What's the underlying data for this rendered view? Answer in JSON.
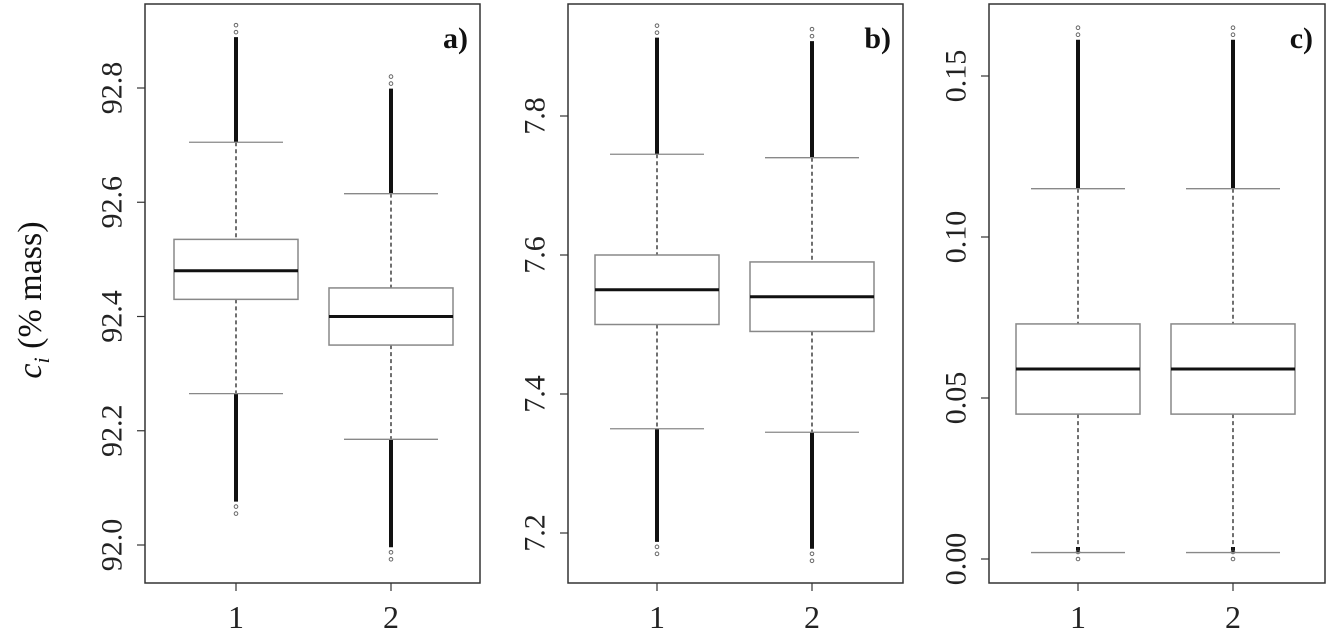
{
  "figure": {
    "ylabel_symbol": "c",
    "ylabel_subscript": "i",
    "ylabel_unit": " (% mass)",
    "background": "#ffffff",
    "line_color": "#222222",
    "box_border_color": "#888888"
  },
  "chart_data": [
    {
      "type": "box",
      "panel_label": "a)",
      "categories": [
        "1",
        "2"
      ],
      "ylabel": "c_i (% mass)",
      "xlabel": "",
      "yticks": [
        92.0,
        92.2,
        92.4,
        92.6,
        92.8
      ],
      "ytick_labels": [
        "92.0",
        "92.2",
        "92.4",
        "92.6",
        "92.8"
      ],
      "ylim": [
        91.94,
        92.94
      ],
      "grid": false,
      "series": [
        {
          "name": "1",
          "q1": 92.43,
          "median": 92.48,
          "q3": 92.535,
          "whisker_low": 92.265,
          "whisker_high": 92.705,
          "outliers_low_min": 92.055,
          "outliers_high_max": 92.91
        },
        {
          "name": "2",
          "q1": 92.35,
          "median": 92.4,
          "q3": 92.45,
          "whisker_low": 92.185,
          "whisker_high": 92.615,
          "outliers_low_min": 91.975,
          "outliers_high_max": 92.82
        }
      ]
    },
    {
      "type": "box",
      "panel_label": "b)",
      "categories": [
        "1",
        "2"
      ],
      "ylabel": "",
      "xlabel": "",
      "yticks": [
        7.2,
        7.4,
        7.6,
        7.8
      ],
      "ytick_labels": [
        "7.2",
        "7.4",
        "7.6",
        "7.8"
      ],
      "ylim": [
        7.13,
        7.96
      ],
      "grid": false,
      "series": [
        {
          "name": "1",
          "q1": 7.5,
          "median": 7.55,
          "q3": 7.6,
          "whisker_low": 7.35,
          "whisker_high": 7.745,
          "outliers_low_min": 7.17,
          "outliers_high_max": 7.93
        },
        {
          "name": "2",
          "q1": 7.49,
          "median": 7.54,
          "q3": 7.59,
          "whisker_low": 7.345,
          "whisker_high": 7.74,
          "outliers_low_min": 7.16,
          "outliers_high_max": 7.925
        }
      ]
    },
    {
      "type": "box",
      "panel_label": "c)",
      "categories": [
        "1",
        "2"
      ],
      "ylabel": "",
      "xlabel": "",
      "yticks": [
        0.0,
        0.05,
        0.1,
        0.15
      ],
      "ytick_labels": [
        "0.00",
        "0.05",
        "0.10",
        "0.15"
      ],
      "ylim": [
        -0.007,
        0.172
      ],
      "grid": false,
      "series": [
        {
          "name": "1",
          "q1": 0.045,
          "median": 0.059,
          "q3": 0.073,
          "whisker_low": 0.002,
          "whisker_high": 0.115,
          "outliers_low_min": 0.0,
          "outliers_high_max": 0.165
        },
        {
          "name": "2",
          "q1": 0.045,
          "median": 0.059,
          "q3": 0.073,
          "whisker_low": 0.002,
          "whisker_high": 0.115,
          "outliers_low_min": 0.0,
          "outliers_high_max": 0.165
        }
      ]
    }
  ]
}
